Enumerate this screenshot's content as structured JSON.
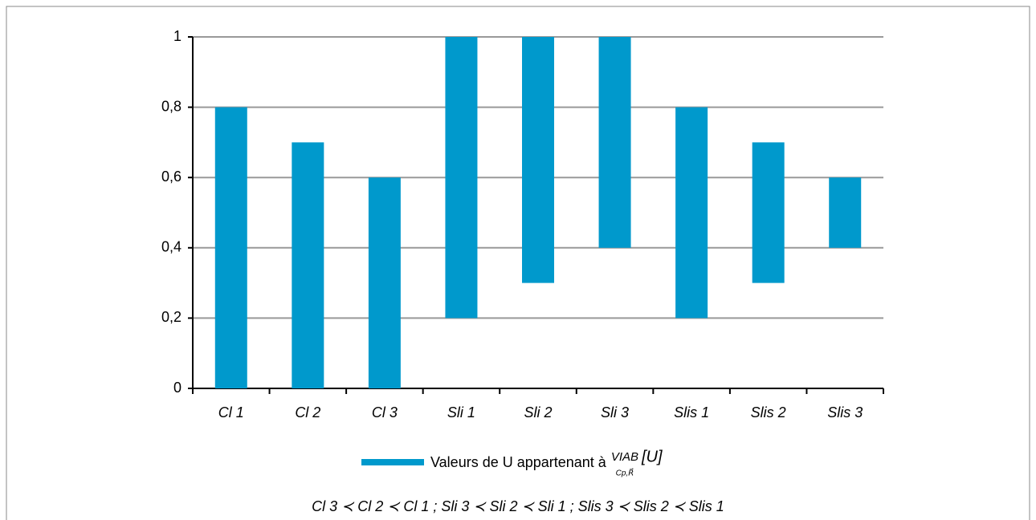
{
  "chart_data": {
    "type": "floating-bar",
    "categories": [
      "Cl 1",
      "Cl 2",
      "Cl 3",
      "Sli 1",
      "Sli 2",
      "Sli 3",
      "Slis 1",
      "Slis 2",
      "Slis 3"
    ],
    "series": [
      {
        "name": "Valeurs de U appartenant à",
        "color": "#0099cc",
        "low": [
          0,
          0,
          0,
          0.2,
          0.3,
          0.4,
          0.2,
          0.3,
          0.4
        ],
        "high": [
          0.8,
          0.7,
          0.6,
          1,
          1,
          1,
          0.8,
          0.7,
          0.6
        ]
      }
    ],
    "legend_math": {
      "text": "VIAB",
      "subscript": "Cp,R⃗",
      "argument": "[U]"
    },
    "ylim": [
      0,
      1
    ],
    "yticks": [
      0,
      {
        "value": 0.2,
        "label": "0,2"
      },
      {
        "value": 0.4,
        "label": "0,4"
      },
      {
        "value": 0.6,
        "label": "0,6"
      },
      {
        "value": 0.8,
        "label": "0,8"
      },
      1
    ],
    "grid": true,
    "annotation": "Cl 3 ≺ Cl 2 ≺ Cl 1 ; Sli 3 ≺ Sli 2 ≺ Sli 1 ;  Slis 3 ≺ Slis 2 ≺ Slis 1"
  }
}
